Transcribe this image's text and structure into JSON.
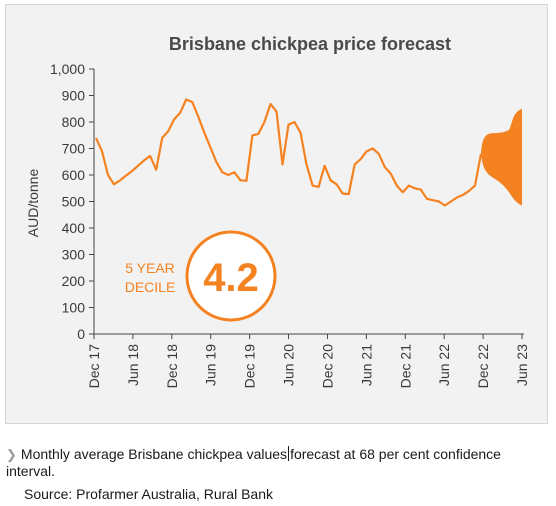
{
  "chart_data": {
    "type": "line",
    "title": "Brisbane chickpea price forecast",
    "ylabel": "AUD/tonne",
    "xlabel": "",
    "ylim": [
      0,
      1000
    ],
    "yticks": [
      0,
      100,
      200,
      300,
      400,
      500,
      600,
      700,
      800,
      900,
      1000
    ],
    "ytick_labels": [
      "0",
      "100",
      "200",
      "300",
      "400",
      "500",
      "600",
      "700",
      "800",
      "900",
      "1,000"
    ],
    "xtick_labels": [
      "Dec 17",
      "Jun 18",
      "Dec 18",
      "Jun 19",
      "Dec 19",
      "Jun 20",
      "Dec 20",
      "Jun 21",
      "Dec 21",
      "Jun 22",
      "Dec 22",
      "Jun 23"
    ],
    "grid": false,
    "series": [
      {
        "values": [
          740,
          690,
          600,
          565,
          580,
          598,
          615,
          635,
          655,
          672,
          620,
          740,
          765,
          810,
          835,
          885,
          875,
          820,
          760,
          705,
          650,
          610,
          600,
          610,
          580,
          578,
          750,
          755,
          800,
          868,
          840,
          640,
          790,
          800,
          760,
          640,
          560,
          555,
          635,
          580,
          565,
          530,
          528,
          640,
          660,
          690,
          700,
          680,
          630,
          605,
          560,
          535,
          560,
          550,
          545,
          510,
          505,
          500,
          485,
          500,
          515,
          525,
          540,
          560,
          680
        ]
      }
    ],
    "forecast": {
      "start_value": 680,
      "end_value": 710,
      "upper": 850,
      "lower": 485
    },
    "colors": {
      "line": "#f58220",
      "axis": "#444444",
      "panel": "#f2f2f2"
    }
  },
  "badge": {
    "label_line1": "5 YEAR",
    "label_line2": "DECILE",
    "value": "4.2"
  },
  "caption": {
    "text_before": "Monthly average Brisbane chickpea values",
    "text_after": "forecast at 68 per cent confidence interval.",
    "source": "Source: Profarmer Australia, Rural Bank"
  }
}
